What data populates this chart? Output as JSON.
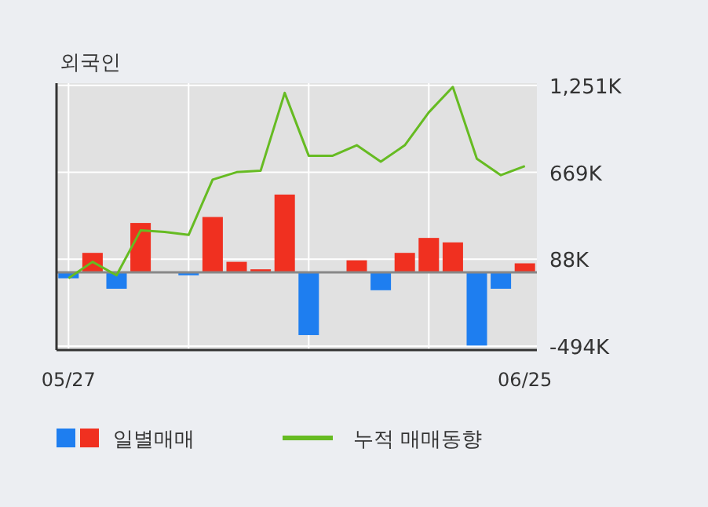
{
  "chart_data": {
    "type": "bar",
    "title": "외국인",
    "categories": [
      "05/27",
      null,
      null,
      null,
      null,
      null,
      null,
      null,
      null,
      null,
      null,
      null,
      null,
      null,
      null,
      null,
      null,
      null,
      null,
      "06/25"
    ],
    "series": [
      {
        "name": "일별매매",
        "colors": [
          "#1e7ef0",
          "#f03020",
          "#1e7ef0",
          "#f03020",
          "#f03020",
          "#1e7ef0",
          "#f03020",
          "#f03020",
          "#f03020",
          "#f03020",
          "#1e7ef0",
          "#f03020",
          "#f03020",
          "#1e7ef0",
          "#f03020",
          "#f03020",
          "#f03020",
          "#1e7ef0",
          "#1e7ef0",
          "#f03020"
        ],
        "values": [
          -40,
          130,
          -110,
          330,
          0,
          -20,
          370,
          70,
          20,
          520,
          -420,
          0,
          80,
          -120,
          130,
          230,
          200,
          -490,
          -110,
          60
        ]
      },
      {
        "type": "line",
        "name": "누적 매매동향",
        "color": "#66bb22",
        "values": [
          -40,
          70,
          -20,
          280,
          270,
          250,
          620,
          670,
          680,
          1200,
          780,
          780,
          850,
          740,
          850,
          1070,
          1240,
          760,
          650,
          710
        ]
      }
    ],
    "ylim": [
      -520,
      1265
    ],
    "yticks": [
      {
        "value": 1251,
        "label": "1,251K"
      },
      {
        "value": 669,
        "label": "669K"
      },
      {
        "value": 88,
        "label": "88K"
      },
      {
        "value": -494,
        "label": "-494K"
      }
    ],
    "grid": true,
    "legend": "bottom"
  }
}
